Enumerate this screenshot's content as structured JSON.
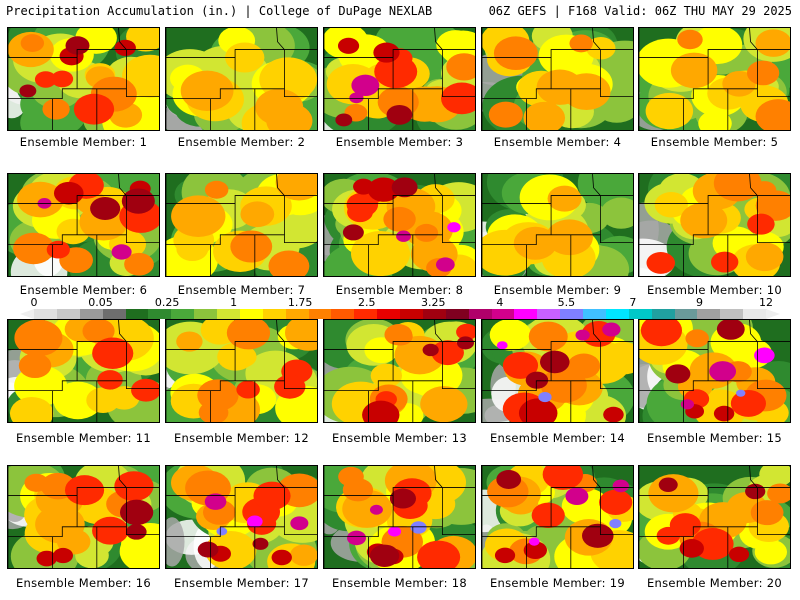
{
  "header": {
    "left": "Precipitation Accumulation (in.) | College of DuPage NEXLAB",
    "right": "06Z GEFS | F168 Valid: 06Z THU MAY 29 2025"
  },
  "colorbar": {
    "labels": [
      "0",
      "0.05",
      "0.25",
      "1",
      "1.75",
      "2.5",
      "3.25",
      "4",
      "5.5",
      "7",
      "9",
      "12"
    ],
    "colors": [
      "#e0e0e0",
      "#c8c8c8",
      "#9a9a9a",
      "#6e6e6e",
      "#1f6e1f",
      "#2f8a2f",
      "#4aa83a",
      "#8cc43c",
      "#d2e632",
      "#ffff00",
      "#ffd200",
      "#ffa800",
      "#ff8000",
      "#ff5a00",
      "#ff2a00",
      "#e80000",
      "#c80000",
      "#a00010",
      "#800020",
      "#b0006a",
      "#d2008c",
      "#ff00ff",
      "#c860ff",
      "#8080ff",
      "#40c0ff",
      "#00e6ff",
      "#00c8c8",
      "#20a0a0",
      "#6a9a9a",
      "#a0a0a0",
      "#c0c0c0",
      "#e8e8e8"
    ]
  },
  "members": [
    {
      "caption": "Ensemble Member: 1",
      "intensity": 0.75
    },
    {
      "caption": "Ensemble Member: 2",
      "intensity": 0.45
    },
    {
      "caption": "Ensemble Member: 3",
      "intensity": 0.8
    },
    {
      "caption": "Ensemble Member: 4",
      "intensity": 0.55
    },
    {
      "caption": "Ensemble Member: 5",
      "intensity": 0.55
    },
    {
      "caption": "Ensemble Member: 6",
      "intensity": 0.8
    },
    {
      "caption": "Ensemble Member: 7",
      "intensity": 0.5
    },
    {
      "caption": "Ensemble Member: 8",
      "intensity": 0.85
    },
    {
      "caption": "Ensemble Member: 9",
      "intensity": 0.45
    },
    {
      "caption": "Ensemble Member: 10",
      "intensity": 0.6
    },
    {
      "caption": "Ensemble Member: 11",
      "intensity": 0.6
    },
    {
      "caption": "Ensemble Member: 12",
      "intensity": 0.6
    },
    {
      "caption": "Ensemble Member: 13",
      "intensity": 0.7
    },
    {
      "caption": "Ensemble Member: 14",
      "intensity": 0.95
    },
    {
      "caption": "Ensemble Member: 15",
      "intensity": 0.9
    },
    {
      "caption": "Ensemble Member: 16",
      "intensity": 0.7
    },
    {
      "caption": "Ensemble Member: 17",
      "intensity": 0.95
    },
    {
      "caption": "Ensemble Member: 18",
      "intensity": 0.95
    },
    {
      "caption": "Ensemble Member: 19",
      "intensity": 0.95
    },
    {
      "caption": "Ensemble Member: 20",
      "intensity": 0.7
    }
  ]
}
